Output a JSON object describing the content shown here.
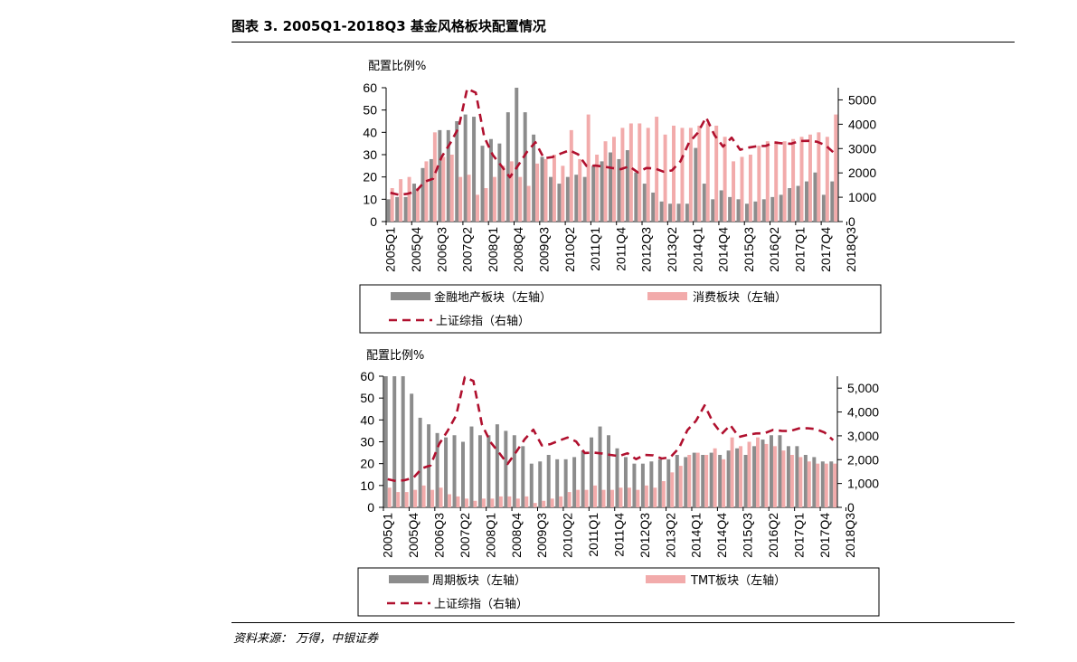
{
  "figure_title": "图表 3. 2005Q1-2018Q3 基金风格板块配置情况",
  "source": "资料来源： 万得，中银证券",
  "colors": {
    "gray": "#8c8c8c",
    "pink": "#f2abab",
    "line": "#b0102e"
  },
  "chart_data": [
    {
      "type": "bar+line",
      "ylabel": "配置比例%",
      "ylim_left": [
        0,
        60
      ],
      "yticks_left": [
        "0",
        "10",
        "20",
        "30",
        "40",
        "50",
        "60"
      ],
      "ylim_right": [
        0,
        5500
      ],
      "yticks_right": [
        "0",
        "1000",
        "2000",
        "3000",
        "4000",
        "5000"
      ],
      "x_tick_labels": [
        "2005Q1",
        "2005Q4",
        "2006Q3",
        "2007Q2",
        "2008Q1",
        "2008Q4",
        "2009Q3",
        "2010Q2",
        "2011Q1",
        "2011Q4",
        "2012Q3",
        "2013Q2",
        "2014Q1",
        "2014Q4",
        "2015Q3",
        "2016Q2",
        "2017Q1",
        "2017Q4",
        "2018Q3"
      ],
      "legend": {
        "series1": "金融地产板块（左轴）",
        "series2": "消费板块（左轴）",
        "line": "上证综指（右轴）"
      },
      "series": [
        {
          "name": "金融地产板块",
          "axis": "left",
          "color": "gray",
          "values": [
            10,
            11,
            11,
            17,
            24,
            28,
            41,
            41,
            45,
            48,
            47,
            34,
            37,
            35,
            49,
            60,
            49,
            39,
            29,
            20,
            17,
            20,
            21,
            20,
            25,
            27,
            31,
            28,
            32,
            22,
            17,
            13,
            9,
            8,
            8,
            8,
            33,
            17,
            10,
            14,
            11,
            10,
            8,
            9,
            10,
            11,
            12,
            15,
            16,
            18,
            22,
            12,
            18
          ]
        },
        {
          "name": "消费板块",
          "axis": "left",
          "color": "pink",
          "values": [
            15,
            19,
            20,
            15,
            27,
            40,
            29,
            30,
            20,
            21,
            12,
            15,
            20,
            25,
            27,
            20,
            16,
            26,
            28,
            30,
            25,
            41,
            28,
            48,
            30,
            36,
            38,
            42,
            44,
            44,
            42,
            47,
            39,
            43,
            42,
            42,
            43,
            44,
            43,
            38,
            27,
            29,
            30,
            34,
            36,
            36,
            36,
            37,
            38,
            39,
            40,
            38,
            48
          ]
        },
        {
          "name": "上证综指",
          "axis": "right",
          "color": "line",
          "style": "dashed",
          "values": [
            1180,
            1100,
            1140,
            1240,
            1640,
            1760,
            2650,
            3210,
            3860,
            5460,
            5300,
            3480,
            2740,
            2290,
            1820,
            2320,
            2860,
            3260,
            2600,
            2650,
            2800,
            2930,
            2760,
            2280,
            2300,
            2260,
            2200,
            2150,
            2270,
            2020,
            2200,
            2180,
            2050,
            2100,
            2480,
            3240,
            3630,
            4280,
            3550,
            3080,
            3450,
            2950,
            3040,
            3100,
            3110,
            3250,
            3210,
            3200,
            3310,
            3320,
            3280,
            3140,
            2820
          ]
        }
      ]
    },
    {
      "type": "bar+line",
      "ylabel": "配置比例%",
      "ylim_left": [
        0,
        60
      ],
      "yticks_left": [
        "0",
        "10",
        "20",
        "30",
        "40",
        "50",
        "60"
      ],
      "ylim_right": [
        0,
        5500
      ],
      "yticks_right": [
        "0",
        "1,000",
        "2,000",
        "3,000",
        "4,000",
        "5,000"
      ],
      "x_tick_labels": [
        "2005Q1",
        "2005Q4",
        "2006Q3",
        "2007Q2",
        "2008Q1",
        "2008Q4",
        "2009Q3",
        "2010Q2",
        "2011Q1",
        "2011Q4",
        "2012Q3",
        "2013Q2",
        "2014Q1",
        "2014Q4",
        "2015Q3",
        "2016Q2",
        "2017Q1",
        "2017Q4",
        "2018Q3"
      ],
      "legend": {
        "series1": "周期板块（左轴）",
        "series2": "TMT板块（左轴）",
        "line": "上证综指（右轴）"
      },
      "series": [
        {
          "name": "周期板块",
          "axis": "left",
          "color": "gray",
          "values": [
            60,
            60,
            60,
            52,
            41,
            38,
            34,
            32,
            33,
            30,
            37,
            33,
            33,
            38,
            35,
            33,
            28,
            20,
            21,
            24,
            22,
            22,
            23,
            26,
            32,
            37,
            33,
            27,
            23,
            20,
            20,
            21,
            22,
            22,
            24,
            23,
            25,
            24,
            25,
            24,
            26,
            27,
            24,
            28,
            31,
            33,
            33,
            28,
            28,
            24,
            23,
            21,
            21
          ]
        },
        {
          "name": "TMT板块",
          "axis": "left",
          "color": "pink",
          "values": [
            9,
            7,
            7,
            8,
            10,
            8,
            9,
            6,
            5,
            4,
            3,
            4,
            4,
            5,
            5,
            4,
            5,
            2,
            3,
            4,
            5,
            7,
            8,
            8,
            10,
            8,
            8,
            9,
            9,
            8,
            10,
            9,
            12,
            16,
            19,
            24,
            25,
            24,
            27,
            22,
            32,
            28,
            30,
            32,
            29,
            28,
            26,
            24,
            23,
            21,
            20,
            20,
            20
          ]
        },
        {
          "name": "上证综指",
          "axis": "right",
          "color": "line",
          "style": "dashed",
          "values": [
            1180,
            1100,
            1140,
            1240,
            1640,
            1760,
            2650,
            3210,
            3860,
            5460,
            5300,
            3480,
            2740,
            2290,
            1820,
            2320,
            2860,
            3260,
            2600,
            2650,
            2800,
            2930,
            2760,
            2280,
            2300,
            2260,
            2200,
            2150,
            2270,
            2020,
            2200,
            2180,
            2050,
            2100,
            2480,
            3240,
            3630,
            4280,
            3550,
            3080,
            3450,
            2950,
            3040,
            3100,
            3110,
            3250,
            3210,
            3200,
            3310,
            3320,
            3280,
            3140,
            2820
          ]
        }
      ]
    }
  ]
}
